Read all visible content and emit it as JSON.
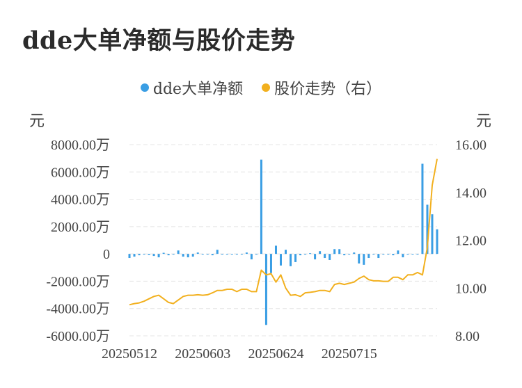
{
  "title": "dde大单净额与股价走势",
  "legend": {
    "bar_series": "dde大单净额",
    "line_series": "股价走势（右）"
  },
  "units": {
    "left": "元",
    "right": "元"
  },
  "colors": {
    "bar": "#3a9ee4",
    "line": "#f2b01e",
    "grid": "#e4e4e4"
  },
  "chart_data": {
    "type": "bar+line",
    "left_axis": {
      "ticks": [
        "8000.00万",
        "6000.00万",
        "4000.00万",
        "2000.00万",
        "0",
        "-2000.00万",
        "-4000.00万",
        "-6000.00万"
      ],
      "range": [
        -6000,
        8000
      ],
      "unit": "万元"
    },
    "right_axis": {
      "ticks": [
        "16.00",
        "14.00",
        "12.00",
        "10.00",
        "8.00"
      ],
      "range": [
        8,
        16
      ]
    },
    "x_tick_labels": [
      "20250512",
      "20250603",
      "20250624",
      "20250715"
    ],
    "x_tick_indices": [
      0,
      15,
      30,
      45
    ],
    "grid": true,
    "series": [
      {
        "name": "dde大单净额",
        "axis": "left",
        "type": "bar",
        "values": [
          -300,
          -200,
          -100,
          -50,
          -80,
          -150,
          -250,
          80,
          -100,
          -50,
          250,
          -200,
          -250,
          -200,
          100,
          -20,
          0,
          -100,
          300,
          0,
          0,
          -50,
          0,
          0,
          100,
          -400,
          0,
          6900,
          -5200,
          -1400,
          600,
          -850,
          300,
          -900,
          -600,
          -100,
          0,
          50,
          -400,
          200,
          -300,
          -450,
          350,
          350,
          -100,
          0,
          100,
          -700,
          -800,
          -300,
          -50,
          -300,
          0,
          0,
          -100,
          250,
          -250,
          0,
          0,
          0,
          6600,
          3600,
          2900,
          1800
        ]
      },
      {
        "name": "股价走势（右）",
        "axis": "right",
        "type": "line",
        "values": [
          9.3,
          9.35,
          9.38,
          9.45,
          9.55,
          9.65,
          9.7,
          9.55,
          9.4,
          9.35,
          9.5,
          9.65,
          9.7,
          9.7,
          9.72,
          9.7,
          9.72,
          9.8,
          9.9,
          9.9,
          9.95,
          9.95,
          9.85,
          9.95,
          9.95,
          9.85,
          9.85,
          10.75,
          10.55,
          10.6,
          10.25,
          10.55,
          10.0,
          9.7,
          9.72,
          9.65,
          9.8,
          9.82,
          9.85,
          9.9,
          9.9,
          9.85,
          10.15,
          10.2,
          10.15,
          10.2,
          10.25,
          10.4,
          10.5,
          10.35,
          10.3,
          10.3,
          10.28,
          10.28,
          10.45,
          10.45,
          10.35,
          10.55,
          10.55,
          10.65,
          10.55,
          11.7,
          14.3,
          15.4
        ]
      }
    ]
  }
}
